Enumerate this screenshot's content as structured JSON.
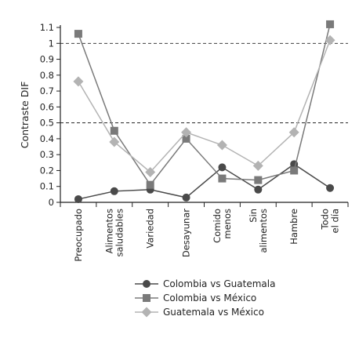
{
  "chart_data": {
    "type": "line",
    "title": "",
    "xlabel": "",
    "ylabel": "Contraste DIF",
    "ylim": [
      0,
      1.1
    ],
    "yticks": [
      0,
      0.1,
      0.2,
      0.3,
      0.4,
      0.5,
      0.6,
      0.7,
      0.8,
      0.9,
      1,
      1.1
    ],
    "ytick_labels": [
      "0",
      "0.1",
      "0.2",
      "0.3",
      "0.4",
      "0.5",
      "0.6",
      "0.7",
      "0.8",
      "0.9",
      "1",
      "1.1"
    ],
    "categories": [
      [
        "Preocupado"
      ],
      [
        "Alimentos",
        "saludables"
      ],
      [
        "Variedad"
      ],
      [
        "Desayunar"
      ],
      [
        "Comido",
        "menos"
      ],
      [
        "Sin",
        "alimentos"
      ],
      [
        "Hambre"
      ],
      [
        "Todo",
        "el día"
      ]
    ],
    "reference_lines": [
      0.5,
      1.0
    ],
    "grid": false,
    "legend_position": "bottom",
    "series": [
      {
        "name": "Colombia vs Guatemala",
        "marker": "circle",
        "color": "#4a4a4a",
        "values": [
          0.02,
          0.07,
          0.08,
          0.03,
          0.22,
          0.08,
          0.24,
          0.09
        ]
      },
      {
        "name": "Colombia vs México",
        "marker": "square",
        "color": "#7a7a7a",
        "values": [
          1.06,
          0.45,
          0.11,
          0.4,
          0.15,
          0.14,
          0.2,
          1.12
        ]
      },
      {
        "name": "Guatemala vs México",
        "marker": "diamond",
        "color": "#b3b3b3",
        "values": [
          0.76,
          0.38,
          0.19,
          0.44,
          0.36,
          0.23,
          0.44,
          1.02
        ]
      }
    ]
  }
}
